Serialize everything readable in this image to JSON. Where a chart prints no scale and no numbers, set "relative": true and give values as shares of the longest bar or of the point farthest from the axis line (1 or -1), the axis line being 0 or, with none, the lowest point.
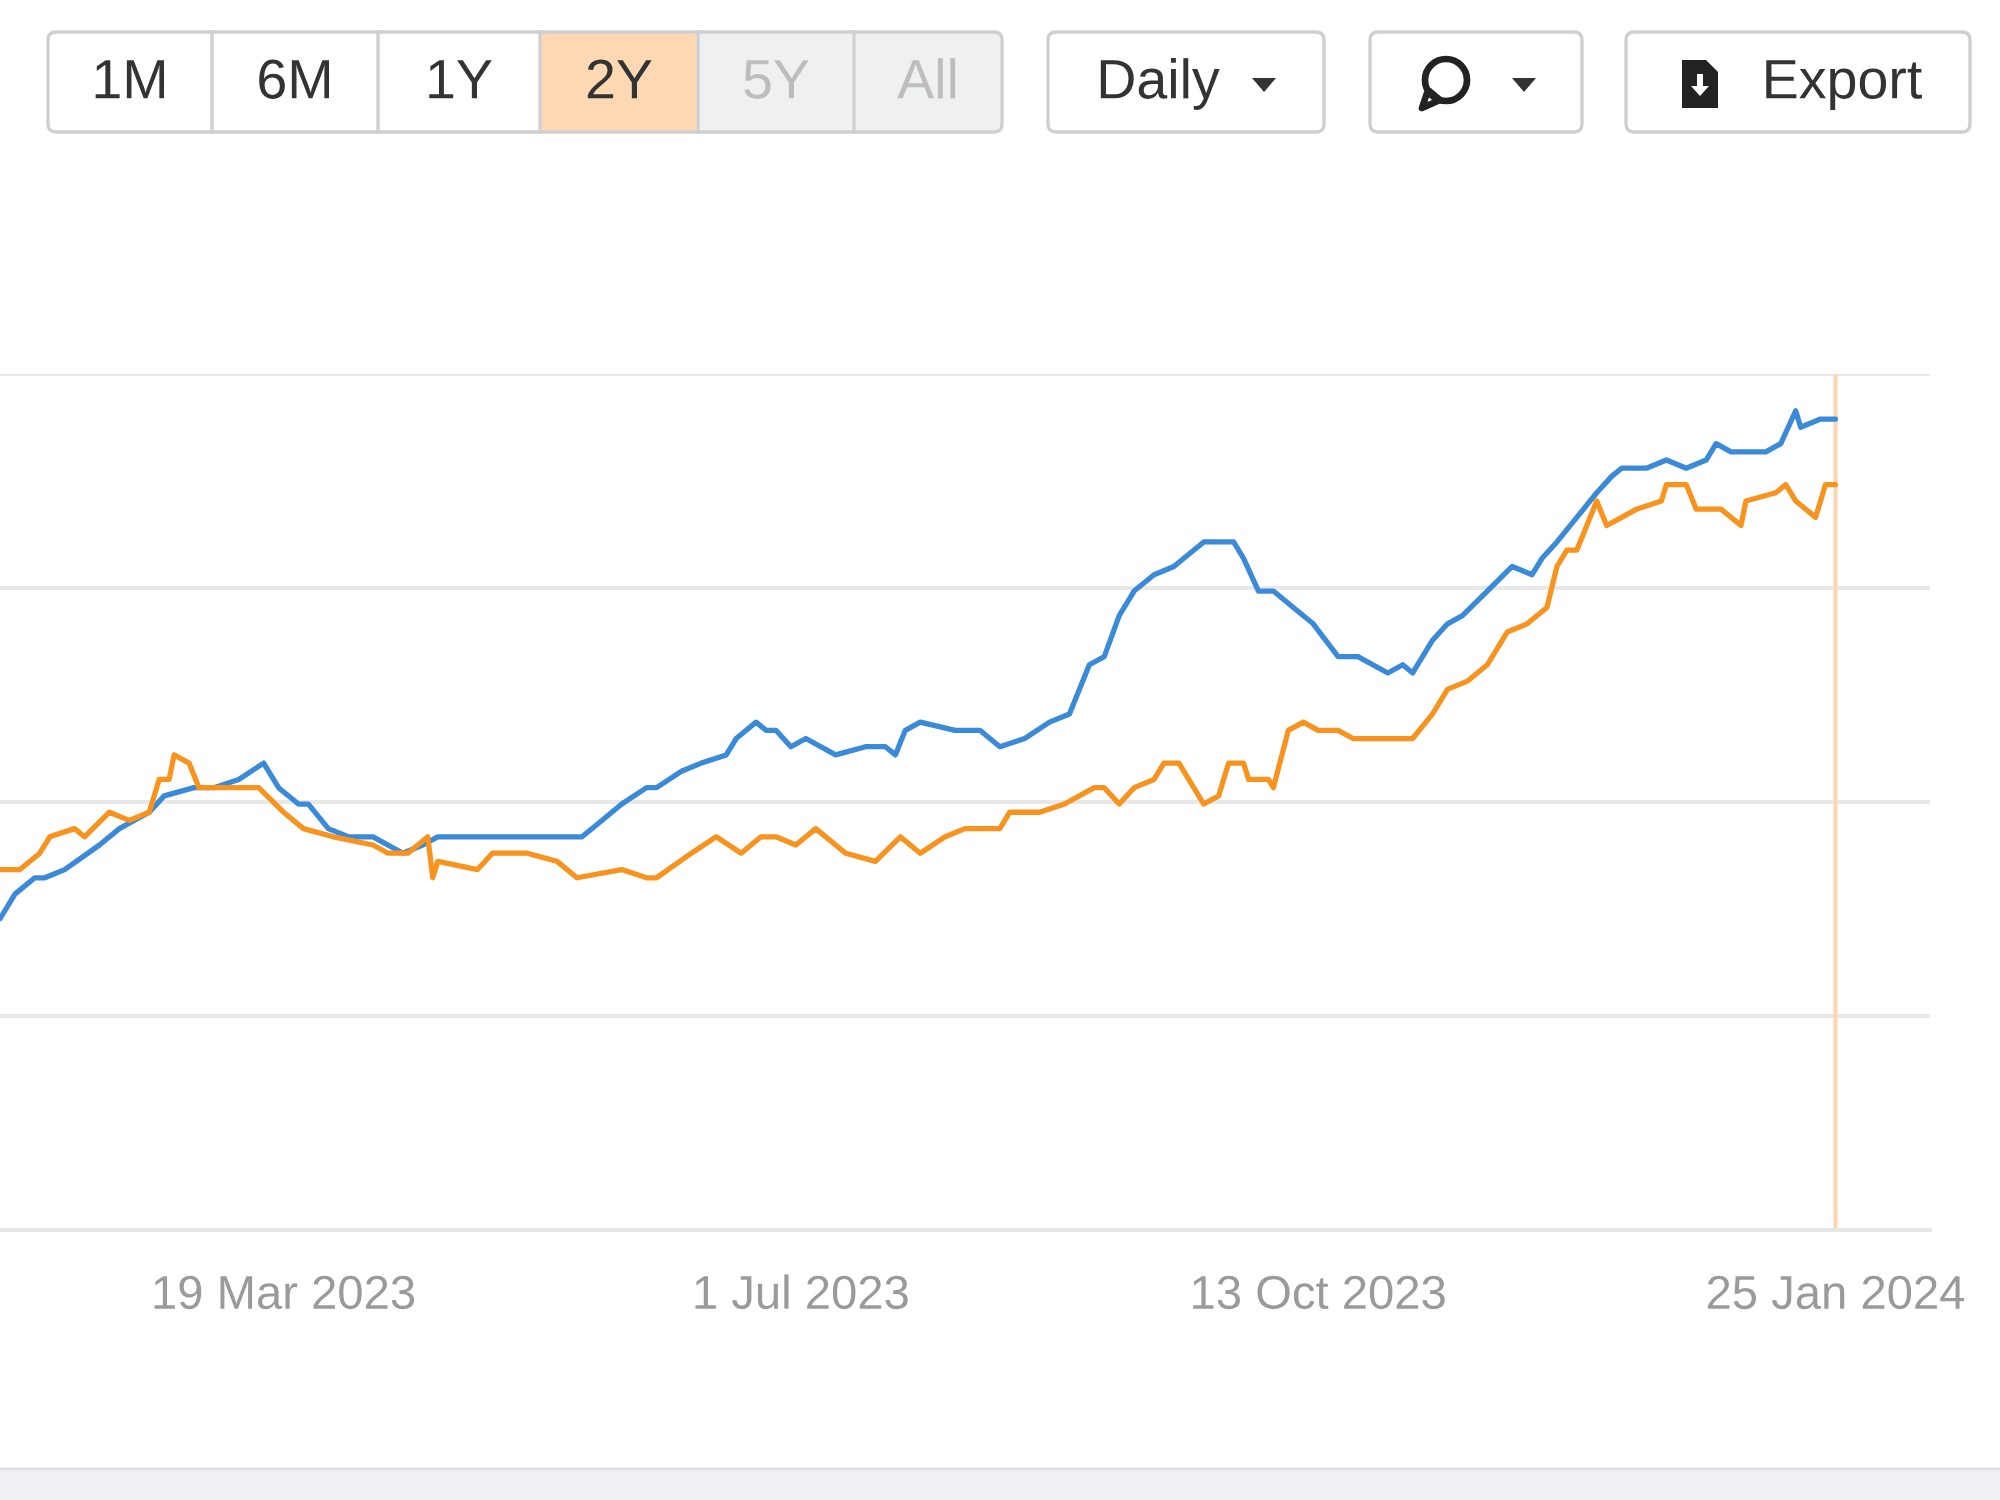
{
  "chart_data": {
    "type": "line",
    "relative": true,
    "series": [
      {
        "color": "#3a8ad8",
        "x": [
          "2023-01-21",
          "2023-01-24",
          "2023-01-28",
          "2023-01-30",
          "2023-02-03",
          "2023-02-10",
          "2023-02-14",
          "2023-02-20",
          "2023-02-23",
          "2023-03-01",
          "2023-03-05",
          "2023-03-10",
          "2023-03-15",
          "2023-03-18",
          "2023-03-22",
          "2023-03-24",
          "2023-03-28",
          "2023-04-01",
          "2023-04-06",
          "2023-04-12",
          "2023-04-16",
          "2023-04-19",
          "2023-04-24",
          "2023-05-02",
          "2023-05-11",
          "2023-05-18",
          "2023-05-22",
          "2023-05-26",
          "2023-05-31",
          "2023-06-02",
          "2023-06-07",
          "2023-06-11",
          "2023-06-16",
          "2023-06-18",
          "2023-06-22",
          "2023-06-24",
          "2023-06-26",
          "2023-06-29",
          "2023-07-02",
          "2023-07-08",
          "2023-07-14",
          "2023-07-18",
          "2023-07-20",
          "2023-07-22",
          "2023-07-25",
          "2023-08-01",
          "2023-08-06",
          "2023-08-10",
          "2023-08-15",
          "2023-08-20",
          "2023-08-24",
          "2023-08-28",
          "2023-08-31",
          "2023-09-03",
          "2023-09-06",
          "2023-09-10",
          "2023-09-14",
          "2023-09-16",
          "2023-09-20",
          "2023-09-26",
          "2023-09-28",
          "2023-10-01",
          "2023-10-04",
          "2023-10-08",
          "2023-10-12",
          "2023-10-17",
          "2023-10-21",
          "2023-10-27",
          "2023-10-30",
          "2023-11-01",
          "2023-11-05",
          "2023-11-08",
          "2023-11-11",
          "2023-11-16",
          "2023-11-21",
          "2023-11-25",
          "2023-11-27",
          "2023-11-30",
          "2023-12-04",
          "2023-12-08",
          "2023-12-11",
          "2023-12-13",
          "2023-12-18",
          "2023-12-22",
          "2023-12-26",
          "2023-12-30",
          "2024-01-01",
          "2024-01-04",
          "2024-01-08",
          "2024-01-11",
          "2024-01-14",
          "2024-01-17",
          "2024-01-18",
          "2024-01-22",
          "2024-01-25"
        ],
        "values": [
          0.38,
          0.41,
          0.43,
          0.43,
          0.44,
          0.47,
          0.49,
          0.51,
          0.53,
          0.54,
          0.54,
          0.55,
          0.57,
          0.54,
          0.52,
          0.52,
          0.49,
          0.48,
          0.48,
          0.46,
          0.47,
          0.48,
          0.48,
          0.48,
          0.48,
          0.48,
          0.5,
          0.52,
          0.54,
          0.54,
          0.56,
          0.57,
          0.58,
          0.6,
          0.62,
          0.61,
          0.61,
          0.59,
          0.6,
          0.58,
          0.59,
          0.59,
          0.58,
          0.61,
          0.62,
          0.61,
          0.61,
          0.59,
          0.6,
          0.62,
          0.63,
          0.69,
          0.7,
          0.75,
          0.78,
          0.8,
          0.81,
          0.82,
          0.84,
          0.84,
          0.82,
          0.78,
          0.78,
          0.76,
          0.74,
          0.7,
          0.7,
          0.68,
          0.69,
          0.68,
          0.72,
          0.74,
          0.75,
          0.78,
          0.81,
          0.8,
          0.82,
          0.84,
          0.87,
          0.9,
          0.92,
          0.93,
          0.93,
          0.94,
          0.93,
          0.94,
          0.96,
          0.95,
          0.95,
          0.95,
          0.96,
          1.0,
          0.98,
          0.99,
          0.99
        ]
      },
      {
        "color": "#f7931e",
        "x": [
          "2023-01-21",
          "2023-01-25",
          "2023-01-29",
          "2023-01-31",
          "2023-02-05",
          "2023-02-07",
          "2023-02-12",
          "2023-02-16",
          "2023-02-20",
          "2023-02-22",
          "2023-02-24",
          "2023-02-25",
          "2023-02-28",
          "2023-03-02",
          "2023-03-07",
          "2023-03-12",
          "2023-03-14",
          "2023-03-19",
          "2023-03-23",
          "2023-03-29",
          "2023-04-06",
          "2023-04-09",
          "2023-04-13",
          "2023-04-17",
          "2023-04-18",
          "2023-04-19",
          "2023-04-27",
          "2023-04-30",
          "2023-05-07",
          "2023-05-13",
          "2023-05-17",
          "2023-05-26",
          "2023-05-31",
          "2023-06-02",
          "2023-06-09",
          "2023-06-14",
          "2023-06-19",
          "2023-06-23",
          "2023-06-26",
          "2023-06-30",
          "2023-07-04",
          "2023-07-10",
          "2023-07-16",
          "2023-07-21",
          "2023-07-25",
          "2023-07-30",
          "2023-08-03",
          "2023-08-10",
          "2023-08-12",
          "2023-08-18",
          "2023-08-23",
          "2023-08-29",
          "2023-08-31",
          "2023-09-03",
          "2023-09-06",
          "2023-09-10",
          "2023-09-12",
          "2023-09-15",
          "2023-09-20",
          "2023-09-23",
          "2023-09-25",
          "2023-09-28",
          "2023-09-29",
          "2023-10-03",
          "2023-10-04",
          "2023-10-07",
          "2023-10-10",
          "2023-10-13",
          "2023-10-17",
          "2023-10-20",
          "2023-10-25",
          "2023-11-01",
          "2023-11-05",
          "2023-11-08",
          "2023-11-12",
          "2023-11-16",
          "2023-11-20",
          "2023-11-24",
          "2023-11-28",
          "2023-11-30",
          "2023-12-02",
          "2023-12-04",
          "2023-12-06",
          "2023-12-08",
          "2023-12-10",
          "2023-12-13",
          "2023-12-16",
          "2023-12-21",
          "2023-12-22",
          "2023-12-26",
          "2023-12-28",
          "2024-01-02",
          "2024-01-06",
          "2024-01-07",
          "2024-01-13",
          "2024-01-15",
          "2024-01-17",
          "2024-01-21",
          "2024-01-23",
          "2024-01-25"
        ],
        "values": [
          0.44,
          0.44,
          0.46,
          0.48,
          0.49,
          0.48,
          0.51,
          0.5,
          0.51,
          0.55,
          0.55,
          0.58,
          0.57,
          0.54,
          0.54,
          0.54,
          0.54,
          0.51,
          0.49,
          0.48,
          0.47,
          0.46,
          0.46,
          0.48,
          0.43,
          0.45,
          0.44,
          0.46,
          0.46,
          0.45,
          0.43,
          0.44,
          0.43,
          0.43,
          0.46,
          0.48,
          0.46,
          0.48,
          0.48,
          0.47,
          0.49,
          0.46,
          0.45,
          0.48,
          0.46,
          0.48,
          0.49,
          0.49,
          0.51,
          0.51,
          0.52,
          0.54,
          0.54,
          0.52,
          0.54,
          0.55,
          0.57,
          0.57,
          0.52,
          0.53,
          0.57,
          0.57,
          0.55,
          0.55,
          0.54,
          0.61,
          0.62,
          0.61,
          0.61,
          0.6,
          0.6,
          0.6,
          0.63,
          0.66,
          0.67,
          0.69,
          0.73,
          0.74,
          0.76,
          0.81,
          0.83,
          0.83,
          0.86,
          0.89,
          0.86,
          0.87,
          0.88,
          0.89,
          0.91,
          0.91,
          0.88,
          0.88,
          0.86,
          0.89,
          0.9,
          0.91,
          0.89,
          0.87,
          0.91,
          0.91
        ]
      }
    ],
    "xlim": [
      "2023-01-21",
      "2024-02-13"
    ],
    "xticks": [
      {
        "value": "2023-03-19",
        "label": "19 Mar 2023"
      },
      {
        "value": "2023-07-01",
        "label": "1 Jul 2023"
      },
      {
        "value": "2023-10-13",
        "label": "13 Oct 2023"
      },
      {
        "value": "2024-01-25",
        "label": "25 Jan 2024"
      }
    ],
    "grid": "y",
    "tick_labels": "x",
    "ref_lines": [
      {
        "axis": "x",
        "value": "2024-01-25",
        "color": "#fbd6b4"
      }
    ],
    "annotations": [
      "1M",
      "6M",
      "1Y",
      "2Y",
      "5Y",
      "All",
      "Daily",
      "Export"
    ]
  }
}
